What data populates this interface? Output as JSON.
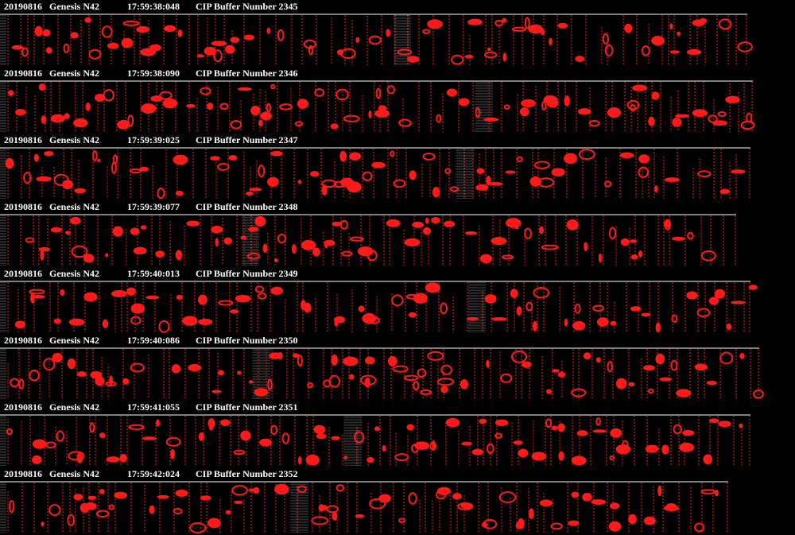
{
  "strips": [
    {
      "date": "20190816",
      "platform": "Genesis N42",
      "time": "17:59:38:048",
      "buffer": "CIP Buffer Number 2345"
    },
    {
      "date": "20190816",
      "platform": "Genesis N42",
      "time": "17:59:38:090",
      "buffer": "CIP Buffer Number 2346"
    },
    {
      "date": "20190816",
      "platform": "Genesis N42",
      "time": "17:59:39:025",
      "buffer": "CIP Buffer Number 2347"
    },
    {
      "date": "20190816",
      "platform": "Genesis N42",
      "time": "17:59:39:077",
      "buffer": "CIP Buffer Number 2348"
    },
    {
      "date": "20190816",
      "platform": "Genesis N42",
      "time": "17:59:40:013",
      "buffer": "CIP Buffer Number 2349"
    },
    {
      "date": "20190816",
      "platform": "Genesis N42",
      "time": "17:59:40:086",
      "buffer": "CIP Buffer Number 2350"
    },
    {
      "date": "20190816",
      "platform": "Genesis N42",
      "time": "17:59:41:055",
      "buffer": "CIP Buffer Number 2351"
    },
    {
      "date": "20190816",
      "platform": "Genesis N42",
      "time": "17:59:42:024",
      "buffer": "CIP Buffer Number 2352"
    }
  ]
}
